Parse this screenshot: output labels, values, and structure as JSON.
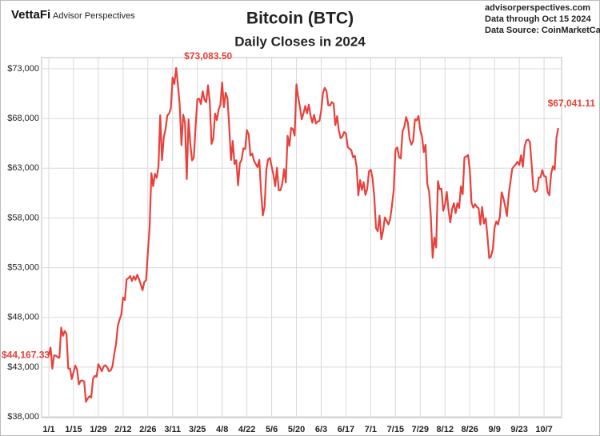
{
  "brand": {
    "logo": "VettaFi",
    "name": "Advisor Perspectives"
  },
  "source": {
    "site": "advisorperspectives.com",
    "through": "Data through Oct 15 2024",
    "source": "Data Source: CoinMarketCap"
  },
  "chart_data": {
    "type": "line",
    "title": "Bitcoin (BTC)",
    "subtitle": "Daily Closes in 2024",
    "color": "#e8413c",
    "grid": true,
    "ylim": [
      38000,
      73000
    ],
    "yticks": [
      {
        "value": 38000,
        "label": "$38,000"
      },
      {
        "value": 43000,
        "label": "$43,000"
      },
      {
        "value": 48000,
        "label": "$48,000"
      },
      {
        "value": 53000,
        "label": "$53,000"
      },
      {
        "value": 58000,
        "label": "$58,000"
      },
      {
        "value": 63000,
        "label": "$63,000"
      },
      {
        "value": 68000,
        "label": "$68,000"
      },
      {
        "value": 73000,
        "label": "$73,000"
      }
    ],
    "categories": [
      "1/1",
      null,
      null,
      null,
      null,
      null,
      null,
      null,
      null,
      null,
      null,
      null,
      null,
      null,
      "1/15",
      null,
      null,
      null,
      null,
      null,
      null,
      null,
      null,
      null,
      null,
      null,
      null,
      null,
      "1/29",
      null,
      null,
      null,
      null,
      null,
      null,
      null,
      null,
      null,
      null,
      null,
      null,
      null,
      "2/12",
      null,
      null,
      null,
      null,
      null,
      null,
      null,
      null,
      null,
      null,
      null,
      null,
      null,
      "2/26",
      null,
      null,
      null,
      null,
      null,
      null,
      null,
      null,
      null,
      null,
      null,
      null,
      null,
      "3/11",
      null,
      null,
      null,
      null,
      null,
      null,
      null,
      null,
      null,
      null,
      null,
      null,
      null,
      "3/25",
      null,
      null,
      null,
      null,
      null,
      null,
      null,
      null,
      null,
      null,
      null,
      null,
      null,
      "4/8",
      null,
      null,
      null,
      null,
      null,
      null,
      null,
      null,
      null,
      null,
      null,
      null,
      null,
      "4/22",
      null,
      null,
      null,
      null,
      null,
      null,
      null,
      null,
      null,
      null,
      null,
      null,
      null,
      "5/6",
      null,
      null,
      null,
      null,
      null,
      null,
      null,
      null,
      null,
      null,
      null,
      null,
      null,
      "5/20",
      null,
      null,
      null,
      null,
      null,
      null,
      null,
      null,
      null,
      null,
      null,
      null,
      null,
      "6/3",
      null,
      null,
      null,
      null,
      null,
      null,
      null,
      null,
      null,
      null,
      null,
      null,
      null,
      "6/17",
      null,
      null,
      null,
      null,
      null,
      null,
      null,
      null,
      null,
      null,
      null,
      null,
      null,
      "7/1",
      null,
      null,
      null,
      null,
      null,
      null,
      null,
      null,
      null,
      null,
      null,
      null,
      null,
      "7/15",
      null,
      null,
      null,
      null,
      null,
      null,
      null,
      null,
      null,
      null,
      null,
      null,
      null,
      "7/29",
      null,
      null,
      null,
      null,
      null,
      null,
      null,
      null,
      null,
      null,
      null,
      null,
      null,
      "8/12",
      null,
      null,
      null,
      null,
      null,
      null,
      null,
      null,
      null,
      null,
      null,
      null,
      null,
      "8/26",
      null,
      null,
      null,
      null,
      null,
      null,
      null,
      null,
      null,
      null,
      null,
      null,
      null,
      "9/9",
      null,
      null,
      null,
      null,
      null,
      null,
      null,
      null,
      null,
      null,
      null,
      null,
      null,
      "9/23",
      null,
      null,
      null,
      null,
      null,
      null,
      null,
      null,
      null,
      null,
      null,
      null,
      null,
      "10/7",
      null,
      null,
      null,
      null,
      null,
      null,
      null,
      null
    ],
    "values": [
      44167.33,
      44957,
      42848,
      44179,
      44162,
      43989,
      43943,
      46970,
      46139,
      46628,
      46369,
      42853,
      42842,
      41796,
      42511,
      43154,
      42742,
      41262,
      41618,
      41665,
      41545,
      39507,
      39845,
      40077,
      39934,
      41816,
      42120,
      42035,
      43288,
      42952,
      42582,
      43075,
      43185,
      42992,
      42583,
      42658,
      43084,
      44318,
      45301,
      47147,
      47771,
      48293,
      50000,
      49742,
      51826,
      51938,
      52160,
      51663,
      52122,
      51779,
      52284,
      51839,
      51304,
      50731,
      51571,
      51733,
      54522,
      57085,
      62504,
      61198,
      62440,
      62029,
      63167,
      68330,
      63801,
      66106,
      66925,
      68300,
      68499,
      69020,
      72123,
      71481,
      73083.5,
      71396,
      69403,
      65315,
      68390,
      67548,
      61912,
      67913,
      65491,
      63779,
      64062,
      67234,
      69958,
      69987,
      69455,
      70744,
      69892,
      69645,
      71333,
      69702,
      65446,
      65980,
      68508,
      67837,
      68896,
      69362,
      71631,
      69139,
      70587,
      70060,
      67195,
      63821,
      65738,
      63426,
      63811,
      61276,
      63512,
      63843,
      64994,
      64926,
      66837,
      66408,
      64276,
      64482,
      63755,
      63419,
      63113,
      63841,
      60637,
      58254,
      59123,
      62889,
      63892,
      64031,
      63161,
      62334,
      61187,
      63049,
      60793,
      60793,
      61448,
      62901,
      61553,
      66267,
      65231,
      67051,
      66940,
      66278,
      71448,
      70136,
      69122,
      67929,
      68526,
      69265,
      68518,
      69394,
      68296,
      67578,
      68364,
      67491,
      67706,
      67751,
      68804,
      70567,
      71082,
      70757,
      69342,
      69305,
      69648,
      69512,
      67332,
      68241,
      66756,
      66011,
      66191,
      66639,
      66490,
      65140,
      64960,
      64828,
      64096,
      64252,
      63180,
      60277,
      61804,
      60811,
      61604,
      60320,
      60887,
      62678,
      62851,
      62029,
      60173,
      56977,
      56662,
      58231,
      55857,
      56714,
      58051,
      57725,
      57344,
      57900,
      59232,
      60787,
      64870,
      65097,
      64118,
      63974,
      66710,
      67164,
      68154,
      67585,
      65927,
      65372,
      65777,
      67912,
      67813,
      68255,
      66819,
      66201,
      64619,
      65357,
      61415,
      60680,
      58117,
      53991,
      56034,
      55027,
      61710,
      60880,
      60945,
      58719,
      59355,
      60609,
      58737,
      57560,
      58894,
      59478,
      58483,
      59493,
      59012,
      61175,
      60381,
      64094,
      64178,
      64333,
      62880,
      59504,
      59027,
      59388,
      59119,
      58969,
      57325,
      59112,
      57431,
      57971,
      56160,
      53949,
      54140,
      54841,
      57019,
      57648,
      57343,
      58127,
      60571,
      60005,
      59182,
      58192,
      60309,
      61649,
      62940,
      63192,
      63394,
      63648,
      63329,
      64301,
      63143,
      65181,
      65790,
      65887,
      65635,
      63330,
      60837,
      60632,
      60760,
      62067,
      62089,
      62819,
      62224,
      62161,
      60636,
      60275,
      62445,
      63193,
      62851,
      66046,
      67041.11
    ],
    "value_labels": [
      "$44,167.33",
      null,
      null,
      null,
      null,
      null,
      null,
      null,
      null,
      null,
      null,
      null,
      null,
      null,
      null,
      null,
      null,
      null,
      null,
      null,
      null,
      null,
      null,
      null,
      null,
      null,
      null,
      null,
      null,
      null,
      null,
      null,
      null,
      null,
      null,
      null,
      null,
      null,
      null,
      null,
      null,
      null,
      null,
      null,
      null,
      null,
      null,
      null,
      null,
      null,
      null,
      null,
      null,
      null,
      null,
      null,
      null,
      null,
      null,
      null,
      null,
      null,
      null,
      null,
      null,
      null,
      null,
      null,
      null,
      null,
      null,
      null,
      "$73,083.50",
      null,
      null,
      null,
      null,
      null,
      null,
      null,
      null,
      null,
      null,
      null,
      null,
      null,
      null,
      null,
      null,
      null,
      null,
      null,
      null,
      null,
      null,
      null,
      null,
      null,
      null,
      null,
      null,
      null,
      null,
      null,
      null,
      null,
      null,
      null,
      null,
      null,
      null,
      null,
      null,
      null,
      null,
      null,
      null,
      null,
      null,
      null,
      null,
      null,
      null,
      null,
      null,
      null,
      null,
      null,
      null,
      null,
      null,
      null,
      null,
      null,
      null,
      null,
      null,
      null,
      null,
      null,
      null,
      null,
      null,
      null,
      null,
      null,
      null,
      null,
      null,
      null,
      null,
      null,
      null,
      null,
      null,
      null,
      null,
      null,
      null,
      null,
      null,
      null,
      null,
      null,
      null,
      null,
      null,
      null,
      null,
      null,
      null,
      null,
      null,
      null,
      null,
      null,
      null,
      null,
      null,
      null,
      null,
      null,
      null,
      null,
      null,
      null,
      null,
      null,
      null,
      null,
      null,
      null,
      null,
      null,
      null,
      null,
      null,
      null,
      null,
      null,
      null,
      null,
      null,
      null,
      null,
      null,
      null,
      null,
      null,
      null,
      null,
      null,
      null,
      null,
      null,
      null,
      null,
      null,
      null,
      null,
      null,
      null,
      null,
      null,
      null,
      null,
      null,
      null,
      null,
      null,
      null,
      null,
      null,
      null,
      null,
      null,
      null,
      null,
      null,
      null,
      null,
      null,
      null,
      null,
      null,
      null,
      null,
      null,
      null,
      null,
      null,
      null,
      null,
      null,
      null,
      null,
      null,
      null,
      null,
      null,
      null,
      null,
      null,
      null,
      null,
      null,
      null,
      null,
      null,
      null,
      null,
      null,
      null,
      null,
      null,
      null,
      null,
      null,
      null,
      null,
      null,
      null,
      null,
      null,
      null,
      null,
      null,
      null,
      "$67,041.11"
    ]
  }
}
